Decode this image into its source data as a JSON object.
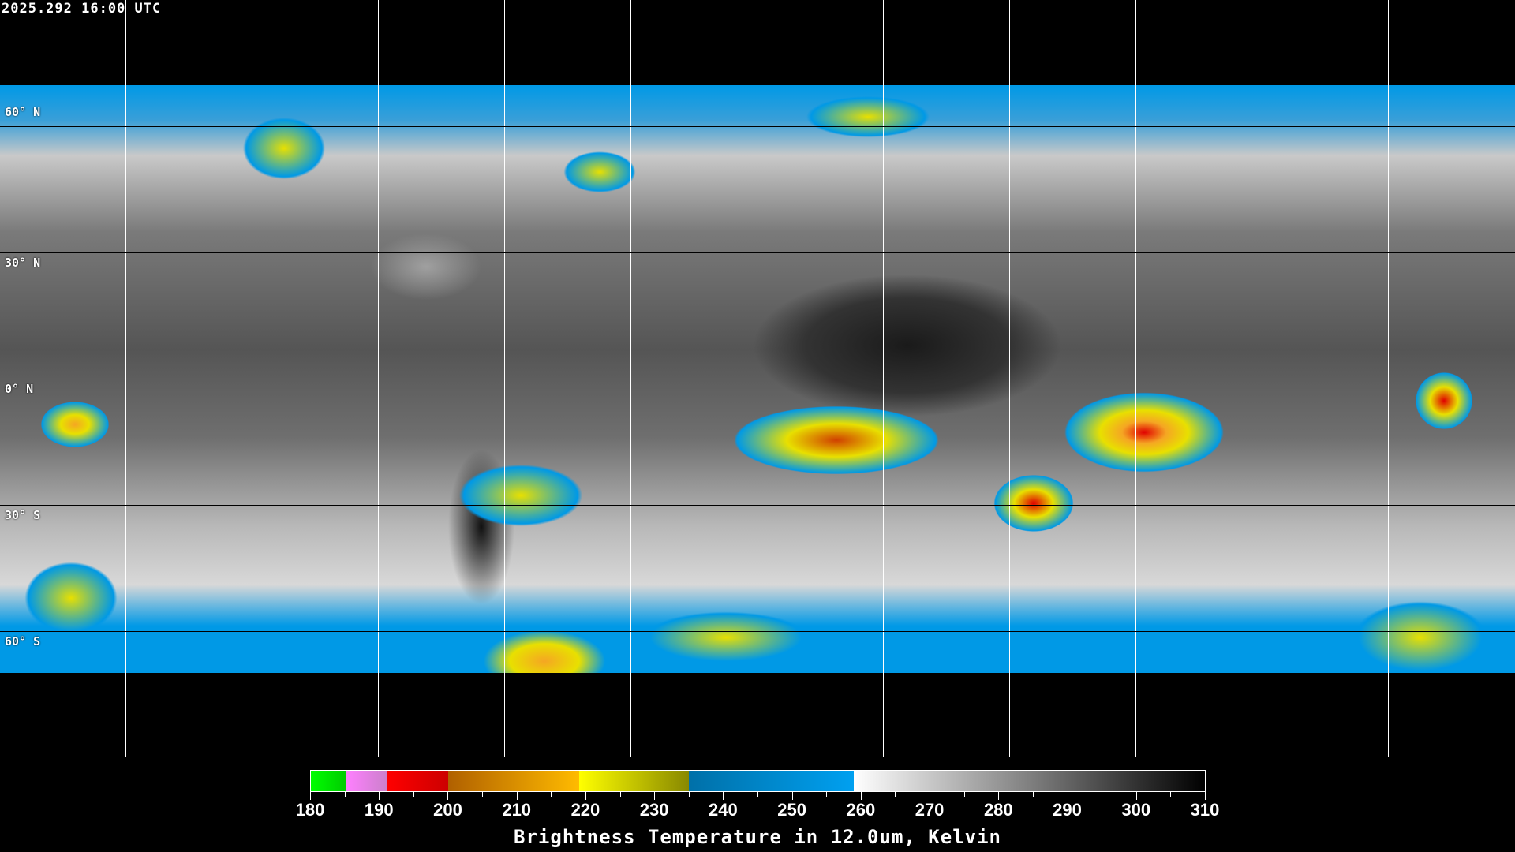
{
  "timestamp": "2025.292 16:00 UTC",
  "map": {
    "projection": "equirectangular",
    "grid_spacing_deg": 30,
    "latitude_labels": [
      "60° N",
      "30° N",
      "0° N",
      "30° S",
      "60° S"
    ],
    "coastline_color": "#ffffff",
    "gridline_color_vertical": "#ffffff",
    "gridline_color_horizontal": "#000000"
  },
  "colorbar": {
    "title": "Brightness Temperature in 12.0um, Kelvin",
    "range": [
      180,
      310
    ],
    "tick_labels": [
      "180",
      "190",
      "200",
      "210",
      "220",
      "230",
      "240",
      "250",
      "260",
      "270",
      "280",
      "290",
      "300",
      "310"
    ],
    "segments": [
      {
        "from": 180,
        "to": 185,
        "colors": [
          "#00ff00",
          "#00cc00"
        ]
      },
      {
        "from": 185,
        "to": 191,
        "colors": [
          "#ff80ff",
          "#cc80cc"
        ]
      },
      {
        "from": 191,
        "to": 200,
        "colors": [
          "#ff0000",
          "#cc0000"
        ]
      },
      {
        "from": 200,
        "to": 219,
        "colors": [
          "#b06000",
          "#ffbb00"
        ]
      },
      {
        "from": 219,
        "to": 235,
        "colors": [
          "#ffff00",
          "#888800"
        ]
      },
      {
        "from": 235,
        "to": 259,
        "colors": [
          "#0070a8",
          "#00a0f0"
        ]
      },
      {
        "from": 259,
        "to": 310,
        "colors": [
          "#ffffff",
          "#000000"
        ]
      }
    ]
  }
}
